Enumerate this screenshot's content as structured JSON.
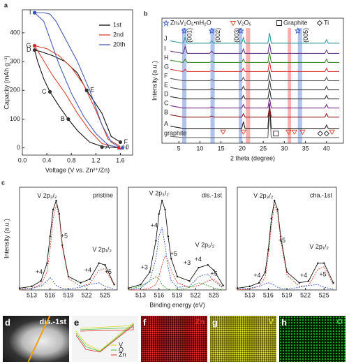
{
  "chart_data": [
    {
      "type": "line",
      "panel": "a",
      "xlabel": "Voltage (V vs. Zn²⁺/Zn)",
      "ylabel": "Capacity (mAh g⁻¹)",
      "xlim": [
        0,
        1.8
      ],
      "xticks": [
        {
          "value": 0,
          "label": "0.0"
        },
        0.4,
        0.8,
        1.2,
        1.6
      ],
      "ylim": [
        -25,
        480
      ],
      "yticks": [
        0,
        100,
        200,
        300,
        400
      ],
      "legend": "upper right",
      "series": [
        {
          "name": "1st",
          "color": "#111111",
          "x": [
            1.6,
            1.45,
            1.3,
            1.1,
            1.05,
            0.9,
            0.7,
            0.5,
            0.3,
            0.2,
            0.25,
            0.35,
            0.45,
            0.6,
            0.75,
            0.9,
            1.1,
            1.3,
            1.45,
            1.6
          ],
          "values": [
            20,
            40,
            120,
            185,
            200,
            260,
            300,
            320,
            335,
            340,
            300,
            240,
            195,
            145,
            100,
            60,
            20,
            5,
            2,
            0
          ]
        },
        {
          "name": "2nd",
          "color": "#d9452b",
          "x": [
            1.6,
            1.4,
            1.2,
            1.0,
            0.8,
            0.6,
            0.4,
            0.2,
            0.3,
            0.5,
            0.7,
            0.9,
            1.1,
            1.3,
            1.6
          ],
          "values": [
            5,
            30,
            130,
            220,
            280,
            320,
            345,
            355,
            320,
            250,
            190,
            120,
            60,
            15,
            0
          ]
        },
        {
          "name": "20th",
          "color": "#4a5fb5",
          "x": [
            1.6,
            1.45,
            1.3,
            1.1,
            0.9,
            0.7,
            0.55,
            0.45,
            0.35,
            0.2,
            0.35,
            0.45,
            0.6,
            0.8,
            1.0,
            1.2,
            1.4,
            1.6
          ],
          "values": [
            0,
            20,
            80,
            200,
            300,
            380,
            440,
            465,
            470,
            470,
            440,
            380,
            290,
            190,
            110,
            50,
            10,
            0
          ]
        }
      ],
      "points": [
        {
          "label": "A",
          "x": 1.3,
          "y": 3,
          "color": "#333333"
        },
        {
          "label": "B",
          "x": 0.75,
          "y": 100,
          "color": "#333333"
        },
        {
          "label": "C",
          "x": 0.45,
          "y": 195,
          "color": "#333333"
        },
        {
          "label": "D",
          "x": 0.2,
          "y": 340,
          "color": "#333333"
        },
        {
          "label": "E",
          "x": 1.05,
          "y": 200,
          "color": "#333333"
        },
        {
          "label": "F",
          "x": 1.6,
          "y": 20,
          "color": "#333333"
        },
        {
          "label": "G",
          "x": 0.2,
          "y": 355,
          "color": "#e02020"
        },
        {
          "label": "H",
          "x": 1.58,
          "y": 2,
          "color": "#e02020"
        },
        {
          "label": "I",
          "x": 0.2,
          "y": 470,
          "color": "#3050c0"
        },
        {
          "label": "J",
          "x": 1.63,
          "y": 2,
          "color": "#3050c0"
        }
      ]
    },
    {
      "type": "line",
      "panel": "b",
      "xlabel": "2 theta (degree)",
      "ylabel": "Intensity (a.u.)",
      "xlim": [
        1,
        44
      ],
      "xticks": [
        5,
        10,
        15,
        20,
        25,
        30,
        35,
        40
      ],
      "ylim": [
        0,
        11
      ],
      "x": [
        3,
        6,
        6.5,
        7,
        12.3,
        12.8,
        13.3,
        19.9,
        20.3,
        20.7,
        26.1,
        26.5,
        26.9,
        39.6,
        40,
        40.4,
        43
      ],
      "series": [
        {
          "name": "graphite",
          "color": "#666666",
          "values": [
            0.6,
            0.5,
            0.5,
            0.5,
            0.5,
            0.5,
            0.5,
            0.5,
            0.5,
            0.5,
            0.5,
            3.0,
            0.5,
            0.5,
            0.5,
            0.5,
            0.5
          ]
        },
        {
          "name": "A",
          "color": "#222222",
          "values": [
            1.5,
            1.3,
            1.3,
            1.3,
            1.3,
            1.3,
            1.3,
            1.3,
            1.9,
            1.3,
            1.3,
            3.5,
            1.3,
            1.3,
            1.6,
            1.3,
            1.3
          ]
        },
        {
          "name": "B",
          "color": "#8b1a1a",
          "values": [
            2.5,
            2.3,
            2.3,
            2.3,
            2.3,
            2.4,
            2.3,
            2.3,
            2.6,
            2.3,
            2.3,
            3.2,
            2.3,
            2.3,
            2.6,
            2.3,
            2.3
          ]
        },
        {
          "name": "C",
          "color": "#7b2a8c",
          "values": [
            3.3,
            3.1,
            3.1,
            3.1,
            3.1,
            3.2,
            3.1,
            3.1,
            3.4,
            3.1,
            3.1,
            4.0,
            3.1,
            3.1,
            3.4,
            3.1,
            3.1
          ]
        },
        {
          "name": "D",
          "color": "#333333",
          "values": [
            4.1,
            3.9,
            3.9,
            3.9,
            3.9,
            4.0,
            3.9,
            3.9,
            4.2,
            3.9,
            3.9,
            4.8,
            3.9,
            3.9,
            4.2,
            3.9,
            3.9
          ]
        },
        {
          "name": "E",
          "color": "#444444",
          "values": [
            4.9,
            4.7,
            4.7,
            4.7,
            4.7,
            4.8,
            4.7,
            4.7,
            5.0,
            4.7,
            4.7,
            5.6,
            4.7,
            4.7,
            5.0,
            4.7,
            4.7
          ]
        },
        {
          "name": "F",
          "color": "#555555",
          "values": [
            5.7,
            5.5,
            5.5,
            5.5,
            5.5,
            5.6,
            5.5,
            5.5,
            5.8,
            5.5,
            5.5,
            6.4,
            5.5,
            5.5,
            5.8,
            5.5,
            5.5
          ]
        },
        {
          "name": "G",
          "color": "#d23c3c",
          "values": [
            6.5,
            6.3,
            6.5,
            6.3,
            6.3,
            6.4,
            6.3,
            6.3,
            6.6,
            6.3,
            6.3,
            7.2,
            6.3,
            6.3,
            6.6,
            6.3,
            6.3
          ]
        },
        {
          "name": "H",
          "color": "#3a8a2a",
          "values": [
            7.3,
            7.1,
            7.4,
            7.1,
            7.1,
            7.2,
            7.1,
            7.1,
            7.4,
            7.1,
            7.1,
            8.0,
            7.1,
            7.1,
            7.4,
            7.1,
            7.1
          ]
        },
        {
          "name": "I",
          "color": "#6a3a8a",
          "values": [
            8.1,
            7.9,
            8.5,
            7.9,
            7.9,
            8.1,
            7.9,
            7.9,
            8.3,
            7.9,
            7.9,
            8.8,
            7.9,
            7.9,
            8.2,
            7.9,
            7.9
          ]
        },
        {
          "name": "J",
          "color": "#2a9a9a",
          "values": [
            9.0,
            8.8,
            9.3,
            8.8,
            8.8,
            9.0,
            8.8,
            8.8,
            9.3,
            8.8,
            8.8,
            9.7,
            8.8,
            8.8,
            9.1,
            8.8,
            8.8
          ]
        }
      ],
      "bands": [
        {
          "from": 5.8,
          "to": 6.8,
          "color": "#6f8fe0"
        },
        {
          "from": 12.5,
          "to": 13.5,
          "color": "#6f8fe0"
        },
        {
          "from": 19.2,
          "to": 20.0,
          "color": "#6f8fe0"
        },
        {
          "from": 33.2,
          "to": 34.2,
          "color": "#6f8fe0"
        },
        {
          "from": 20.9,
          "to": 21.9,
          "color": "#f07070"
        },
        {
          "from": 30.8,
          "to": 31.6,
          "color": "#f07070"
        }
      ],
      "legend": [
        {
          "label": "ZnₓV₂O₅•nH₂O",
          "color": "#3355cc",
          "symbol": "star",
          "x": [
            6.3,
            12.8,
            19.7,
            33.2
          ]
        },
        {
          "label": "V₂O₅",
          "color": "#d9452b",
          "symbol": "triangle",
          "x": [
            15.5,
            20.3,
            31,
            32.4,
            34.3,
            41.3
          ]
        },
        {
          "label": "Graphite",
          "color": "#222222",
          "symbol": "square",
          "x": [
            28
          ]
        },
        {
          "label": "Ti",
          "color": "#222222",
          "symbol": "diamond",
          "x": [
            38.5,
            40
          ]
        }
      ],
      "peak_labels": [
        {
          "text": "(001)",
          "x": 7.6
        },
        {
          "text": "(002)",
          "x": 14.3
        },
        {
          "text": "(003)",
          "x": 18.8
        },
        {
          "text": "(005)",
          "x": 35.2
        }
      ]
    },
    {
      "type": "line",
      "panel": "c",
      "title": "pristine",
      "ylabel": "Intensity (a.u.)",
      "xlim": [
        511,
        527
      ],
      "xticks": [
        513,
        516,
        519,
        522,
        525
      ],
      "ylim": [
        0,
        1.15
      ],
      "x": [
        511,
        513,
        514.5,
        515.5,
        516,
        516.5,
        517,
        517.5,
        518,
        519,
        521,
        522.5,
        524,
        525,
        526.5
      ],
      "series": [
        {
          "color": "#111111",
          "dots": true,
          "values": [
            0.02,
            0.04,
            0.1,
            0.3,
            0.6,
            0.9,
            1.0,
            0.85,
            0.5,
            0.15,
            0.08,
            0.12,
            0.3,
            0.28,
            0.06
          ]
        },
        {
          "color": "#d9452b",
          "dash": true,
          "values": [
            0,
            0.02,
            0.06,
            0.2,
            0.45,
            0.8,
            0.95,
            0.82,
            0.48,
            0.13,
            0.04,
            0.07,
            0.22,
            0.24,
            0.05
          ]
        },
        {
          "color": "#3355cc",
          "dash": true,
          "values": [
            0.01,
            0.02,
            0.04,
            0.1,
            0.14,
            0.1,
            0.05,
            0.03,
            0.02,
            0.01,
            0.03,
            0.06,
            0.08,
            0.04,
            0.01
          ]
        }
      ],
      "annotations": [
        {
          "text": "V 2p₃/₂",
          "x": 515.5,
          "y": 1.05,
          "color": "#111111"
        },
        {
          "text": "V 2p₁/₂",
          "x": 524.5,
          "y": 0.45,
          "color": "#111111"
        },
        {
          "text": "+5",
          "x": 518.3,
          "y": 0.6,
          "color": "#d9452b"
        },
        {
          "text": "+4",
          "x": 514.2,
          "y": 0.2,
          "color": "#3355cc"
        },
        {
          "text": "+4",
          "x": 522.2,
          "y": 0.22,
          "color": "#3355cc"
        },
        {
          "text": "+5",
          "x": 525.5,
          "y": 0.2,
          "color": "#d9452b"
        }
      ]
    },
    {
      "type": "line",
      "title": "dis.-1st",
      "xlabel": "Binding energy (eV)",
      "xlim": [
        511,
        527
      ],
      "xticks": [
        513,
        516,
        519,
        522,
        525
      ],
      "ylim": [
        0,
        1.15
      ],
      "x": [
        511,
        513,
        514.5,
        515.5,
        516,
        516.5,
        517,
        517.5,
        518,
        519,
        521,
        522.5,
        524,
        525,
        526.5
      ],
      "series": [
        {
          "color": "#111111",
          "dots": true,
          "values": [
            0.02,
            0.06,
            0.2,
            0.55,
            0.85,
            1.0,
            0.9,
            0.6,
            0.35,
            0.15,
            0.1,
            0.25,
            0.28,
            0.22,
            0.05
          ]
        },
        {
          "color": "#3355cc",
          "dash": true,
          "values": [
            0,
            0.02,
            0.1,
            0.35,
            0.6,
            0.7,
            0.5,
            0.25,
            0.1,
            0.03,
            0.04,
            0.15,
            0.18,
            0.1,
            0.02
          ]
        },
        {
          "color": "#d9452b",
          "dash": true,
          "values": [
            0,
            0,
            0.02,
            0.06,
            0.15,
            0.28,
            0.38,
            0.33,
            0.22,
            0.08,
            0.03,
            0.05,
            0.1,
            0.12,
            0.03
          ]
        },
        {
          "color": "#3a9a2a",
          "dash": true,
          "values": [
            0.01,
            0.04,
            0.1,
            0.15,
            0.12,
            0.06,
            0.03,
            0.01,
            0,
            0,
            0.03,
            0.08,
            0.05,
            0.02,
            0
          ]
        }
      ],
      "annotations": [
        {
          "text": "V 2p₃/₂",
          "x": 516,
          "y": 1.08,
          "color": "#111111"
        },
        {
          "text": "V 2p₁/₂",
          "x": 523.5,
          "y": 0.5,
          "color": "#111111"
        },
        {
          "text": "+4",
          "x": 515.2,
          "y": 0.72,
          "color": "#3355cc"
        },
        {
          "text": "+5",
          "x": 518.4,
          "y": 0.4,
          "color": "#d9452b"
        },
        {
          "text": "+3",
          "x": 513.6,
          "y": 0.25,
          "color": "#3a9a2a"
        },
        {
          "text": "+3",
          "x": 520.6,
          "y": 0.3,
          "color": "#3a9a2a"
        },
        {
          "text": "+4",
          "x": 522.4,
          "y": 0.34,
          "color": "#3355cc"
        },
        {
          "text": "+5",
          "x": 525,
          "y": 0.18,
          "color": "#d9452b"
        }
      ]
    },
    {
      "type": "line",
      "title": "cha.-1st",
      "xlim": [
        511,
        527
      ],
      "xticks": [
        513,
        516,
        519,
        522,
        525
      ],
      "ylim": [
        0,
        1.15
      ],
      "x": [
        511,
        513,
        514.5,
        515.5,
        516,
        516.5,
        517,
        517.5,
        518,
        519,
        521,
        522.5,
        524,
        525,
        526.5
      ],
      "series": [
        {
          "color": "#111111",
          "dots": true,
          "values": [
            0.02,
            0.04,
            0.08,
            0.2,
            0.45,
            0.8,
            1.0,
            0.9,
            0.6,
            0.2,
            0.08,
            0.1,
            0.3,
            0.3,
            0.08
          ]
        },
        {
          "color": "#d9452b",
          "dash": true,
          "values": [
            0,
            0.01,
            0.04,
            0.14,
            0.38,
            0.72,
            0.95,
            0.86,
            0.56,
            0.17,
            0.04,
            0.05,
            0.23,
            0.26,
            0.06
          ]
        },
        {
          "color": "#3355cc",
          "dash": true,
          "values": [
            0.01,
            0.02,
            0.04,
            0.07,
            0.08,
            0.07,
            0.05,
            0.03,
            0.02,
            0.01,
            0.03,
            0.05,
            0.06,
            0.03,
            0.01
          ]
        }
      ],
      "annotations": [
        {
          "text": "V 2p₃/₂",
          "x": 515.2,
          "y": 1.05,
          "color": "#111111"
        },
        {
          "text": "V 2p₁/₂",
          "x": 524.2,
          "y": 0.48,
          "color": "#111111"
        },
        {
          "text": "+5",
          "x": 518.2,
          "y": 0.55,
          "color": "#d9452b"
        },
        {
          "text": "+4",
          "x": 514.2,
          "y": 0.16,
          "color": "#3355cc"
        },
        {
          "text": "+4",
          "x": 521.7,
          "y": 0.16,
          "color": "#3355cc"
        },
        {
          "text": "+5",
          "x": 524.8,
          "y": 0.17,
          "color": "#d9452b"
        }
      ]
    }
  ],
  "images": [
    {
      "panel": "d",
      "label": "dis.-1st"
    },
    {
      "panel": "e",
      "legend": [
        {
          "text": "V",
          "color": "#d8d820"
        },
        {
          "text": "O",
          "color": "#40c040"
        },
        {
          "text": "Zn",
          "color": "#e03030"
        }
      ]
    },
    {
      "panel": "f",
      "label": "Zn"
    },
    {
      "panel": "g",
      "label": "V"
    },
    {
      "panel": "h",
      "label": "O"
    }
  ]
}
